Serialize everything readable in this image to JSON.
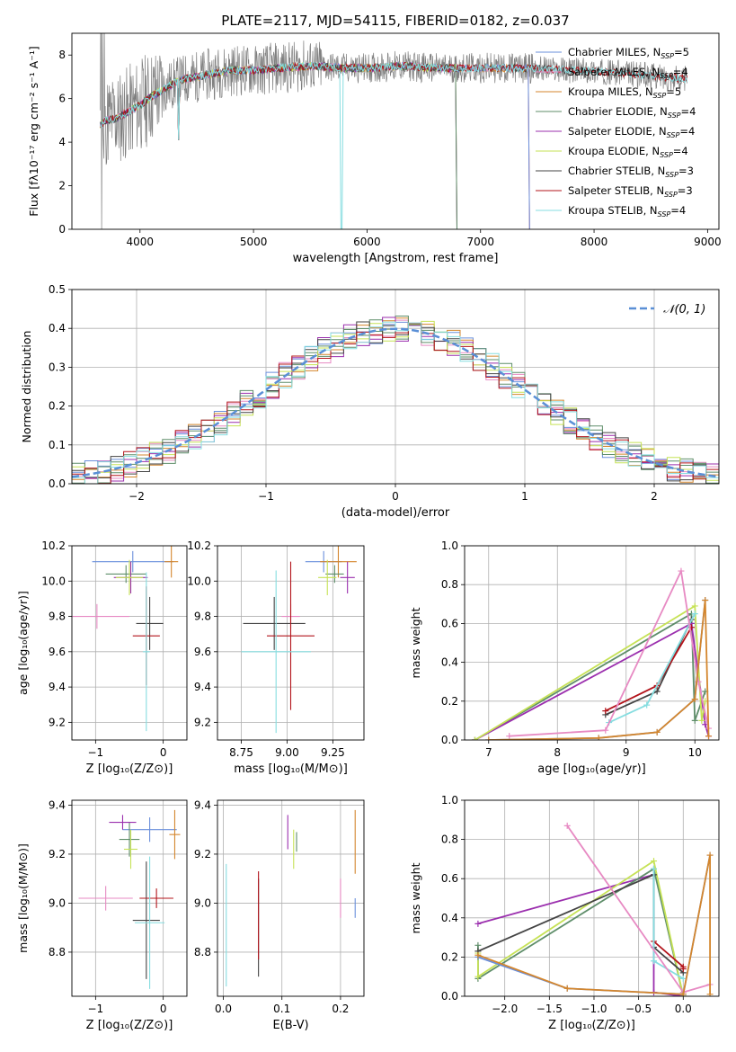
{
  "colors": {
    "cm": "#6a8fdb",
    "sm": "#e78ac3",
    "km": "#d4862d",
    "ce": "#5f8e6a",
    "se": "#9b2fae",
    "ke": "#c6e256",
    "cs": "#444444",
    "ss": "#b3141b",
    "ks": "#86dde0",
    "obs": "#7f7f7f",
    "normal": "#5a8fd6",
    "grid": "#b0b0b0"
  },
  "chart_data": [
    {
      "id": "spectrum",
      "type": "line",
      "title": "PLATE=2117, MJD=54115, FIBERID=0182, z=0.037",
      "xlabel": "wavelength [Angstrom, rest frame]",
      "ylabel": "Flux [fλ10⁻¹⁷ erg cm⁻² s⁻¹ A⁻¹]",
      "xlim": [
        3400,
        9100
      ],
      "ylim": [
        0,
        9
      ],
      "xticks": [
        "4000",
        "5000",
        "6000",
        "7000",
        "8000",
        "9000"
      ],
      "yticks": [
        "0",
        "2",
        "4",
        "6",
        "8"
      ],
      "legend_position": "top-right",
      "legend": [
        {
          "key": "cm",
          "text": "Chabrier MILES, N",
          "sub": "SSP",
          "tail": "=5"
        },
        {
          "key": "sm",
          "text": "Salpeter MILES, N",
          "sub": "SSP",
          "tail": "=4"
        },
        {
          "key": "km",
          "text": "Kroupa MILES, N",
          "sub": "SSP",
          "tail": "=5"
        },
        {
          "key": "ce",
          "text": "Chabrier ELODIE, N",
          "sub": "SSP",
          "tail": "=4"
        },
        {
          "key": "se",
          "text": "Salpeter ELODIE, N",
          "sub": "SSP",
          "tail": "=4"
        },
        {
          "key": "ke",
          "text": "Kroupa ELODIE, N",
          "sub": "SSP",
          "tail": "=4"
        },
        {
          "key": "cs",
          "text": "Chabrier STELIB, N",
          "sub": "SSP",
          "tail": "=3"
        },
        {
          "key": "ss",
          "text": "Salpeter STELIB, N",
          "sub": "SSP",
          "tail": "=3"
        },
        {
          "key": "ks",
          "text": "Kroupa STELIB, N",
          "sub": "SSP",
          "tail": "=4"
        }
      ],
      "continuum": [
        [
          3650,
          4.8
        ],
        [
          3700,
          5.0
        ],
        [
          3800,
          5.1
        ],
        [
          3900,
          5.4
        ],
        [
          4000,
          5.7
        ],
        [
          4100,
          6.1
        ],
        [
          4200,
          6.4
        ],
        [
          4300,
          6.7
        ],
        [
          4400,
          6.9
        ],
        [
          4600,
          7.1
        ],
        [
          4800,
          7.3
        ],
        [
          5000,
          7.3
        ],
        [
          5200,
          7.4
        ],
        [
          5500,
          7.5
        ],
        [
          5800,
          7.4
        ],
        [
          6000,
          7.4
        ],
        [
          6300,
          7.5
        ],
        [
          6600,
          7.4
        ],
        [
          7000,
          7.4
        ],
        [
          7400,
          7.4
        ],
        [
          7800,
          7.3
        ],
        [
          8200,
          7.2
        ],
        [
          8600,
          7.0
        ],
        [
          8820,
          6.9
        ]
      ],
      "cutoffs": {
        "cm": 7420,
        "sm": 7420,
        "km": 7420,
        "ce": 6780,
        "se": 6780,
        "ke": 6780,
        "cs": 8820,
        "ss": 8820,
        "ks": 8820
      }
    },
    {
      "id": "residuals",
      "type": "line",
      "xlabel": "(data-model)/error",
      "ylabel": "Normed distribution",
      "xlim": [
        -2.5,
        2.5
      ],
      "ylim": [
        0,
        0.5
      ],
      "xticks": [
        "−2",
        "−1",
        "0",
        "1",
        "2"
      ],
      "yticks": [
        "0.0",
        "0.1",
        "0.2",
        "0.3",
        "0.4",
        "0.5"
      ],
      "legend": "𝒩(0, 1)",
      "legend_position": "top-right"
    },
    {
      "id": "age-vs-Z",
      "type": "scatter",
      "xlabel": "Z [log₁₀(Z/Z⊙)]",
      "ylabel": "age  [log₁₀(age/yr)]",
      "xlim": [
        -1.35,
        0.35
      ],
      "ylim": [
        9.1,
        10.2
      ],
      "xticks": [
        "−1",
        "0"
      ],
      "yticks": [
        "9.2",
        "9.4",
        "9.6",
        "9.8",
        "10.0",
        "10.2"
      ],
      "points": [
        {
          "k": "cm",
          "x": -0.45,
          "xe": 0.6,
          "y": 10.11,
          "ye": 0.06
        },
        {
          "k": "sm",
          "x": -0.98,
          "xe": 0.48,
          "y": 9.8,
          "ye": 0.07
        },
        {
          "k": "km",
          "x": 0.12,
          "xe": 0.1,
          "y": 10.11,
          "ye": 0.09
        },
        {
          "k": "ce",
          "x": -0.55,
          "xe": 0.3,
          "y": 10.04,
          "ye": 0.05
        },
        {
          "k": "se",
          "x": -0.48,
          "xe": 0.25,
          "y": 10.02,
          "ye": 0.09
        },
        {
          "k": "ke",
          "x": -0.5,
          "xe": 0.2,
          "y": 10.02,
          "ye": 0.1
        },
        {
          "k": "cs",
          "x": -0.2,
          "xe": 0.2,
          "y": 9.76,
          "ye": 0.15
        },
        {
          "k": "ss",
          "x": -0.25,
          "xe": 0.2,
          "y": 9.69,
          "ye": 0.28
        },
        {
          "k": "ks",
          "x": -0.25,
          "xe": 0.05,
          "y": 9.6,
          "ye": 0.45
        }
      ]
    },
    {
      "id": "age-vs-mass",
      "type": "scatter",
      "xlabel": "mass [log₁₀(M/M⊙)]",
      "ylabel": "",
      "xlim": [
        8.62,
        9.42
      ],
      "ylim": [
        9.1,
        10.2
      ],
      "xticks": [
        "8.75",
        "9.00",
        "9.25"
      ],
      "yticks": [
        "9.2",
        "9.4",
        "9.6",
        "9.8",
        "10.0",
        "10.2"
      ],
      "points": [
        {
          "k": "cm",
          "x": 9.2,
          "xe": 0.1,
          "y": 10.11,
          "ye": 0.06
        },
        {
          "k": "sm",
          "x": 9.02,
          "xe": 0.05,
          "y": 9.8,
          "ye": 0.07
        },
        {
          "k": "km",
          "x": 9.28,
          "xe": 0.1,
          "y": 10.11,
          "ye": 0.09
        },
        {
          "k": "ce",
          "x": 9.26,
          "xe": 0.05,
          "y": 10.04,
          "ye": 0.05
        },
        {
          "k": "se",
          "x": 9.33,
          "xe": 0.04,
          "y": 10.02,
          "ye": 0.09
        },
        {
          "k": "ke",
          "x": 9.22,
          "xe": 0.05,
          "y": 10.02,
          "ye": 0.1
        },
        {
          "k": "cs",
          "x": 8.93,
          "xe": 0.17,
          "y": 9.76,
          "ye": 0.15
        },
        {
          "k": "ss",
          "x": 9.02,
          "xe": 0.13,
          "y": 9.69,
          "ye": 0.42
        },
        {
          "k": "ks",
          "x": 8.94,
          "xe": 0.19,
          "y": 9.6,
          "ye": 0.46
        }
      ]
    },
    {
      "id": "mass-weight-vs-age",
      "type": "line",
      "xlabel": "age  [log₁₀(age/yr)]",
      "ylabel": "mass weight",
      "xlim": [
        6.65,
        10.35
      ],
      "ylim": [
        0,
        1.0
      ],
      "xticks": [
        "7",
        "8",
        "9",
        "10"
      ],
      "yticks": [
        "0.0",
        "0.2",
        "0.4",
        "0.6",
        "0.8",
        "1.0"
      ],
      "series": [
        {
          "k": "ce",
          "pts": [
            [
              6.8,
              0.0
            ],
            [
              9.95,
              0.65
            ],
            [
              10.0,
              0.1
            ],
            [
              10.15,
              0.25
            ]
          ]
        },
        {
          "k": "se",
          "pts": [
            [
              6.8,
              0.0
            ],
            [
              9.95,
              0.6
            ],
            [
              10.15,
              0.08
            ],
            [
              10.2,
              0.02
            ]
          ]
        },
        {
          "k": "ke",
          "pts": [
            [
              6.8,
              0.0
            ],
            [
              10.0,
              0.69
            ],
            [
              10.1,
              0.1
            ],
            [
              10.15,
              0.2
            ]
          ]
        },
        {
          "k": "cs",
          "pts": [
            [
              8.7,
              0.13
            ],
            [
              9.45,
              0.25
            ],
            [
              9.95,
              0.62
            ]
          ]
        },
        {
          "k": "ss",
          "pts": [
            [
              8.7,
              0.15
            ],
            [
              9.45,
              0.28
            ],
            [
              9.95,
              0.58
            ]
          ]
        },
        {
          "k": "ks",
          "pts": [
            [
              8.75,
              0.09
            ],
            [
              9.3,
              0.18
            ],
            [
              10.0,
              0.65
            ]
          ]
        },
        {
          "k": "sm",
          "pts": [
            [
              7.3,
              0.02
            ],
            [
              8.7,
              0.05
            ],
            [
              9.8,
              0.87
            ],
            [
              10.05,
              0.3
            ],
            [
              10.2,
              0.06
            ]
          ]
        },
        {
          "k": "cm",
          "pts": [
            [
              7.0,
              0.0
            ],
            [
              8.6,
              0.01
            ],
            [
              9.45,
              0.04
            ],
            [
              10.0,
              0.21
            ],
            [
              10.15,
              0.72
            ]
          ]
        },
        {
          "k": "km",
          "pts": [
            [
              7.0,
              0.0
            ],
            [
              8.6,
              0.01
            ],
            [
              9.45,
              0.04
            ],
            [
              10.0,
              0.21
            ],
            [
              10.15,
              0.72
            ],
            [
              10.2,
              0.02
            ]
          ]
        }
      ]
    },
    {
      "id": "mass-vs-Z",
      "type": "scatter",
      "xlabel": "Z [log₁₀(Z/Z⊙)]",
      "ylabel": "mass [log₁₀(M/M⊙)]",
      "xlim": [
        -1.35,
        0.35
      ],
      "ylim": [
        8.62,
        9.42
      ],
      "xticks": [
        "−1",
        "0"
      ],
      "yticks": [
        "8.8",
        "9.0",
        "9.2",
        "9.4"
      ],
      "points": [
        {
          "k": "cm",
          "x": -0.2,
          "xe": 0.4,
          "y": 9.3,
          "ye": 0.05
        },
        {
          "k": "sm",
          "x": -0.85,
          "xe": 0.4,
          "y": 9.02,
          "ye": 0.05
        },
        {
          "k": "km",
          "x": 0.17,
          "xe": 0.08,
          "y": 9.28,
          "ye": 0.1
        },
        {
          "k": "ce",
          "x": -0.5,
          "xe": 0.15,
          "y": 9.26,
          "ye": 0.07
        },
        {
          "k": "se",
          "x": -0.6,
          "xe": 0.2,
          "y": 9.33,
          "ye": 0.03
        },
        {
          "k": "ke",
          "x": -0.48,
          "xe": 0.1,
          "y": 9.22,
          "ye": 0.08
        },
        {
          "k": "cs",
          "x": -0.25,
          "xe": 0.2,
          "y": 8.93,
          "ye": 0.24
        },
        {
          "k": "ss",
          "x": -0.1,
          "xe": 0.25,
          "y": 9.02,
          "ye": 0.04
        },
        {
          "k": "ks",
          "x": -0.2,
          "xe": 0.22,
          "y": 8.92,
          "ye": 0.27
        }
      ]
    },
    {
      "id": "mass-vs-EBV",
      "type": "scatter",
      "xlabel": "E(B-V)",
      "ylabel": "",
      "xlim": [
        -0.01,
        0.24
      ],
      "ylim": [
        8.62,
        9.42
      ],
      "xticks": [
        "0.0",
        "0.1",
        "0.2"
      ],
      "yticks": [
        "8.8",
        "9.0",
        "9.2",
        "9.4"
      ],
      "points": [
        {
          "k": "cm",
          "x": 0.225,
          "xe": 0,
          "y": 8.98,
          "ye": 0.04
        },
        {
          "k": "sm",
          "x": 0.2,
          "xe": 0,
          "y": 9.02,
          "ye": 0.08
        },
        {
          "k": "km",
          "x": 0.225,
          "xe": 0,
          "y": 9.25,
          "ye": 0.13
        },
        {
          "k": "ce",
          "x": 0.125,
          "xe": 0,
          "y": 9.25,
          "ye": 0.04
        },
        {
          "k": "se",
          "x": 0.11,
          "xe": 0,
          "y": 9.29,
          "ye": 0.07
        },
        {
          "k": "ke",
          "x": 0.12,
          "xe": 0,
          "y": 9.22,
          "ye": 0.08
        },
        {
          "k": "cs",
          "x": 0.06,
          "xe": 0,
          "y": 8.9,
          "ye": 0.2
        },
        {
          "k": "ss",
          "x": 0.06,
          "xe": 0,
          "y": 8.95,
          "ye": 0.18
        },
        {
          "k": "ks",
          "x": 0.005,
          "xe": 0,
          "y": 8.91,
          "ye": 0.25
        }
      ]
    },
    {
      "id": "mass-weight-vs-Z",
      "type": "line",
      "xlabel": "Z [log₁₀(Z/Z⊙)]",
      "ylabel": "mass weight",
      "xlim": [
        -2.45,
        0.4
      ],
      "ylim": [
        0,
        1.0
      ],
      "xticks": [
        "−2.0",
        "−1.5",
        "−1.0",
        "−0.5",
        "0.0"
      ],
      "yticks": [
        "0.0",
        "0.2",
        "0.4",
        "0.6",
        "0.8",
        "1.0"
      ],
      "series": [
        {
          "k": "se",
          "pts": [
            [
              -2.3,
              0.37
            ],
            [
              -0.33,
              0.62
            ],
            [
              -0.33,
              0.02
            ],
            [
              0.0,
              0.0
            ]
          ]
        },
        {
          "k": "ce",
          "pts": [
            [
              -2.3,
              0.26
            ],
            [
              -2.3,
              0.09
            ],
            [
              -0.33,
              0.65
            ],
            [
              0.0,
              0.0
            ]
          ]
        },
        {
          "k": "ke",
          "pts": [
            [
              -2.3,
              0.22
            ],
            [
              -2.3,
              0.1
            ],
            [
              -0.33,
              0.69
            ],
            [
              0.0,
              0.0
            ]
          ]
        },
        {
          "k": "cs",
          "pts": [
            [
              -2.3,
              0.23
            ],
            [
              -0.33,
              0.62
            ],
            [
              -0.33,
              0.25
            ],
            [
              0.0,
              0.12
            ]
          ]
        },
        {
          "k": "ss",
          "pts": [
            [
              -0.33,
              0.28
            ],
            [
              0.0,
              0.15
            ],
            [
              0.0,
              0.14
            ]
          ]
        },
        {
          "k": "ks",
          "pts": [
            [
              -0.33,
              0.65
            ],
            [
              -0.33,
              0.18
            ],
            [
              0.0,
              0.09
            ]
          ]
        },
        {
          "k": "sm",
          "pts": [
            [
              -1.3,
              0.87
            ],
            [
              0.0,
              0.02
            ],
            [
              0.3,
              0.06
            ]
          ]
        },
        {
          "k": "cm",
          "pts": [
            [
              -2.3,
              0.2
            ],
            [
              -1.3,
              0.04
            ],
            [
              0.0,
              0.01
            ],
            [
              0.3,
              0.72
            ]
          ]
        },
        {
          "k": "km",
          "pts": [
            [
              -2.3,
              0.21
            ],
            [
              -1.3,
              0.04
            ],
            [
              0.0,
              0.01
            ],
            [
              0.3,
              0.72
            ],
            [
              0.3,
              0.01
            ]
          ]
        }
      ]
    }
  ]
}
